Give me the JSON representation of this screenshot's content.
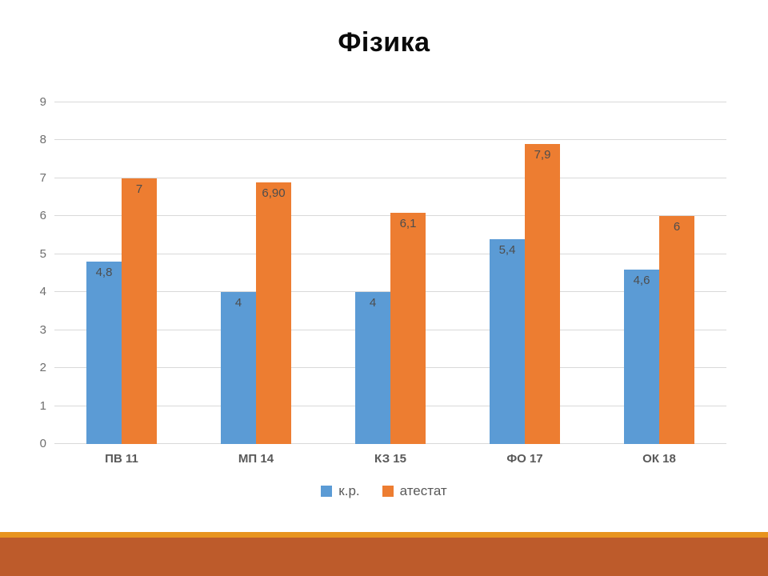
{
  "slide": {
    "title": "Фізика",
    "footer": {
      "accent_strip_color": "#E8941F",
      "band_color": "#BD5B2B"
    }
  },
  "chart_data": {
    "type": "bar",
    "title": "Фізика",
    "categories": [
      "ПВ 11",
      "МП 14",
      "КЗ 15",
      "ФО 17",
      "ОК 18"
    ],
    "series": [
      {
        "name": "к.р.",
        "color": "#5B9BD5",
        "values": [
          4.8,
          4,
          4,
          5.4,
          4.6
        ],
        "labels": [
          "4,8",
          "4",
          "4",
          "5,4",
          "4,6"
        ]
      },
      {
        "name": "атестат",
        "color": "#ED7D31",
        "values": [
          7,
          6.9,
          6.1,
          7.9,
          6
        ],
        "labels": [
          "7",
          "6,90",
          "6,1",
          "7,9",
          "6"
        ]
      }
    ],
    "y_axis": {
      "min": 0,
      "max": 9,
      "step": 1,
      "ticks": [
        "0",
        "1",
        "2",
        "3",
        "4",
        "5",
        "6",
        "7",
        "8",
        "9"
      ]
    },
    "grid": true,
    "gridline_color": "#D9D9D9",
    "data_label_color": "#4d4d4d",
    "legend_position": "bottom"
  }
}
